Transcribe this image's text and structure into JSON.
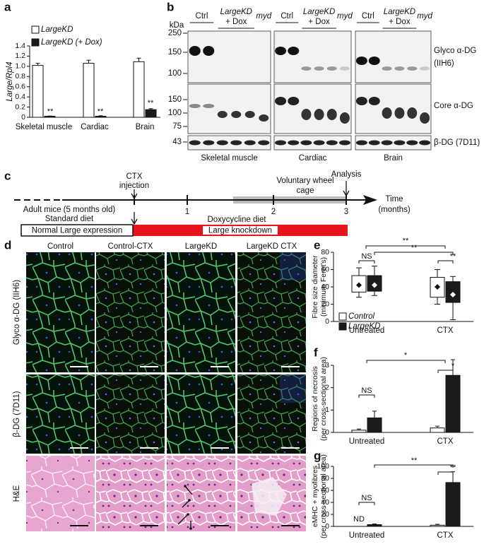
{
  "panel_labels": [
    "a",
    "b",
    "c",
    "d",
    "e",
    "f",
    "g"
  ],
  "chart_data": [
    {
      "type": "bar",
      "ylabel": [
        "Large/Rpl4"
      ],
      "categories": [
        "Skeletal muscle",
        "Cardiac",
        "Brain"
      ],
      "series": [
        {
          "name": "LargeKD",
          "color": "#ffffff",
          "values": [
            1.02,
            1.06,
            1.09
          ],
          "errors": [
            0.04,
            0.06,
            0.07
          ]
        },
        {
          "name": "LargeKD (+ Dox)",
          "color": "#1a1a1a",
          "values": [
            0.02,
            0.02,
            0.15
          ],
          "errors": [
            0.005,
            0.01,
            0.02
          ]
        }
      ],
      "ylim": [
        0,
        1.4
      ],
      "yticks": [
        0,
        0.2,
        0.4,
        0.6,
        0.8,
        {
          "value": 1,
          "label": "1.0"
        },
        1.2,
        1.4
      ],
      "annotations": [
        "**",
        "**",
        "**"
      ]
    },
    {
      "type": "box",
      "ylabel": [
        "Fibre size diameter",
        "(minimum Feret's)"
      ],
      "categories": [
        "Untreated",
        "CTX"
      ],
      "series": [
        {
          "name": "Control",
          "color": "#ffffff",
          "low": [
            28,
            20
          ],
          "q1": [
            34,
            28
          ],
          "q3": [
            53,
            51
          ],
          "high": [
            62,
            60
          ],
          "mean": [
            42,
            40
          ]
        },
        {
          "name": "LargeKD",
          "color": "#1a1a1a",
          "low": [
            30,
            2
          ],
          "q1": [
            35,
            22
          ],
          "q3": [
            53,
            46
          ],
          "high": [
            64,
            52
          ],
          "mean": [
            42,
            31
          ]
        }
      ],
      "ylim": [
        0,
        80
      ],
      "yticks": [
        0,
        20,
        40,
        60,
        80
      ],
      "legend": true,
      "annotations": [
        "NS",
        "**",
        "**",
        "**"
      ]
    },
    {
      "type": "bar",
      "ylabel": [
        "Regions of necrosis",
        "(per cross-sectional area)"
      ],
      "categories": [
        "Untreated",
        "CTX"
      ],
      "series": [
        {
          "name": "Control",
          "color": "#ffffff",
          "values": [
            0.1,
            0.2
          ],
          "errors": [
            0.05,
            0.08
          ]
        },
        {
          "name": "LargeKD",
          "color": "#1a1a1a",
          "values": [
            0.65,
            2.55
          ],
          "errors": [
            0.3,
            0.7
          ]
        }
      ],
      "ylim": [
        0,
        3
      ],
      "yticks": [
        0,
        1,
        2,
        3
      ],
      "annotations": [
        "NS",
        "*",
        "*"
      ]
    },
    {
      "type": "bar",
      "ylabel": [
        "eMHC + myofibres",
        "(per cross-sectional area)"
      ],
      "categories": [
        "Untreated",
        "CTX"
      ],
      "series": [
        {
          "name": "Control",
          "color": "#ffffff",
          "values": [
            0,
            2
          ],
          "errors": [
            null,
            1.5
          ]
        },
        {
          "name": "LargeKD",
          "color": "#1a1a1a",
          "values": [
            3,
            73
          ],
          "errors": [
            1,
            18
          ]
        }
      ],
      "ylim": [
        0,
        100
      ],
      "yticks": [
        0,
        20,
        40,
        60,
        80,
        100
      ],
      "annotations": [
        "ND",
        "NS",
        "**",
        "**"
      ]
    }
  ],
  "blot": {
    "unit": "kDa",
    "groups": [
      {
        "tissue": "Skeletal muscle",
        "ctrl": "Ctrl",
        "kd": "LargeKD",
        "dox": "+ Dox",
        "myd": "myd"
      },
      {
        "tissue": "Cardiac",
        "ctrl": "Ctrl",
        "kd": "LargeKD",
        "dox": "+ Dox",
        "myd": "myd"
      },
      {
        "tissue": "Brain",
        "ctrl": "Ctrl",
        "kd": "LargeKD",
        "dox": "+ Dox",
        "myd": "myd"
      }
    ],
    "rows": [
      {
        "label": [
          "Glyco α-DG",
          "(IIH6)"
        ],
        "markers": [
          250,
          150,
          100
        ]
      },
      {
        "label": [
          "Core α-DG"
        ],
        "markers": [
          150,
          100,
          75
        ]
      },
      {
        "label": [
          "β-DG (7D11)"
        ],
        "markers": [
          43
        ]
      }
    ]
  },
  "timeline": {
    "ctx": [
      "CTX",
      "injection"
    ],
    "wheel": [
      "Voluntary wheel",
      "cage"
    ],
    "analysis": "Analysis",
    "axis": [
      "Time",
      "(months)"
    ],
    "ticks": [
      1,
      2,
      3
    ],
    "mice": "Adult mice (5 months old)",
    "standard": "Standard diet",
    "dox": "Doxycycline diet",
    "normal": "Normal Large expression",
    "knockdown": "Large knockdown"
  },
  "micrographs": {
    "columns": [
      "Control",
      "Control-CTX",
      "LargeKD",
      "LargeKD CTX"
    ],
    "rows": [
      "Glyco α-DG (IIH6)",
      "β-DG (7D11)",
      "H&E"
    ]
  }
}
